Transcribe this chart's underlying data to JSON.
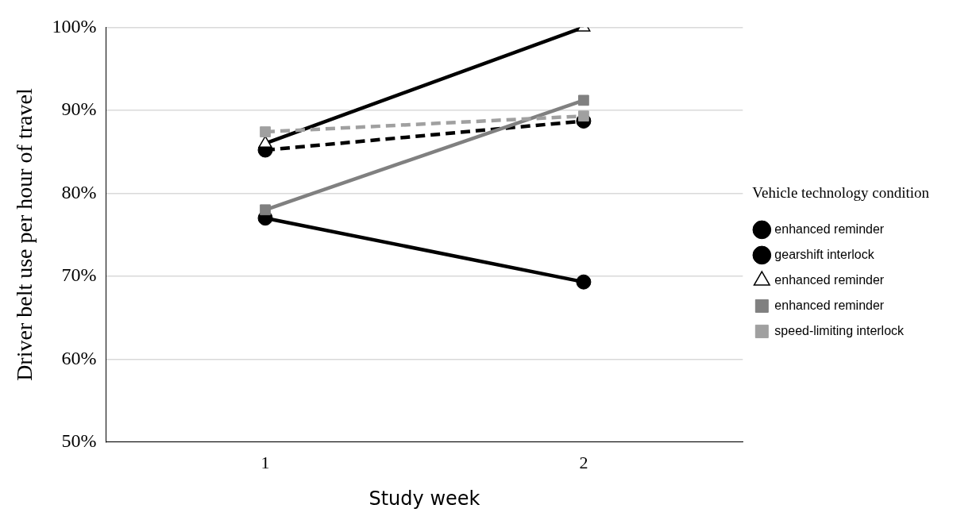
{
  "chart_data": {
    "type": "line",
    "xlabel": "Study week",
    "ylabel": "Driver belt use per hour of travel",
    "legend_title": "Vehicle technology condition",
    "legend": "right",
    "grid": "y",
    "categories": [
      "1",
      "2"
    ],
    "ylim": [
      50,
      100
    ],
    "yticks": [
      {
        "value": 50,
        "label": "50%"
      },
      {
        "value": 60,
        "label": "60%"
      },
      {
        "value": 70,
        "label": "70%"
      },
      {
        "value": 80,
        "label": "80%"
      },
      {
        "value": 90,
        "label": "90%"
      },
      {
        "value": 100,
        "label": "100%"
      }
    ],
    "series": [
      {
        "name": "enhanced reminder",
        "color": "#000000",
        "marker": "circle",
        "line_style": "solid",
        "values": [
          77,
          69.3
        ]
      },
      {
        "name": "gearshift interlock",
        "color": "#000000",
        "marker": "circle",
        "line_style": "dashed",
        "values": [
          85.2,
          88.7
        ]
      },
      {
        "name": "enhanced reminder",
        "color": "#000000",
        "marker": "triangle",
        "line_style": "solid",
        "values": [
          86,
          100
        ]
      },
      {
        "name": "enhanced reminder",
        "color": "#808080",
        "marker": "square",
        "line_style": "solid",
        "values": [
          78,
          91.2
        ]
      },
      {
        "name": "speed-limiting interlock",
        "color": "#a0a0a0",
        "marker": "square",
        "line_style": "dashed",
        "values": [
          87.4,
          89.3
        ]
      }
    ]
  }
}
